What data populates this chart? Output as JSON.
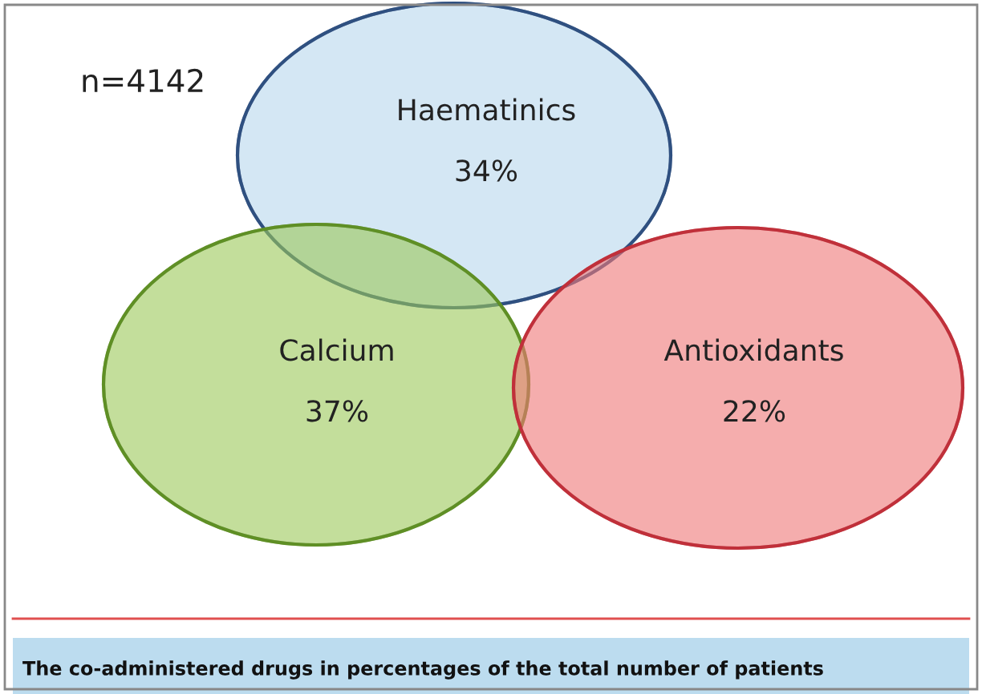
{
  "chart_data": {
    "type": "other",
    "categories": [
      "Haematinics",
      "Calcium",
      "Antioxidants"
    ],
    "values": [
      34,
      37,
      22
    ],
    "value_labels": [
      "34%",
      "37%",
      "22%"
    ],
    "colors": [
      "#b9d8ee",
      "#9cc95a",
      "#f07878"
    ],
    "annotations": [
      "n=4142",
      "The co-administered drugs in percentages of the total number of patients"
    ]
  }
}
